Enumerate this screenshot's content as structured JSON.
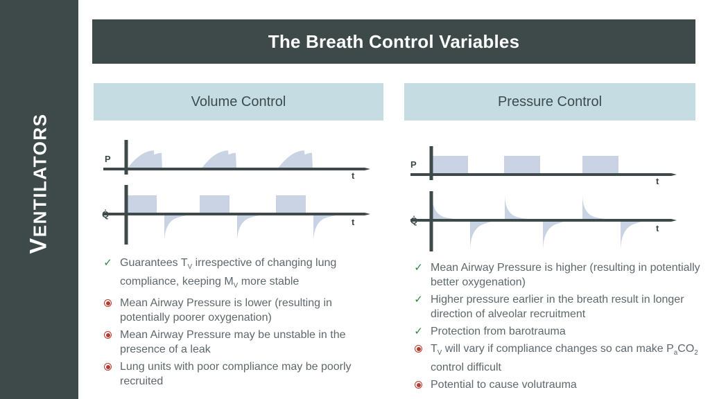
{
  "sidebar": {
    "vertical_title_initial": "V",
    "vertical_title_rest": "ENTILATORS"
  },
  "header": {
    "title": "The Breath Control Variables"
  },
  "icons": {
    "check": "✓"
  },
  "colors": {
    "dark_slate": "#3d4a49",
    "panel_blue": "#c5dde2",
    "waveform_fill": "#c9d3e3",
    "check_green": "#2e8540",
    "bullet_red": "#b5392c",
    "body_text": "#5e686c"
  },
  "columns": [
    {
      "header": "Volume Control",
      "graphs": [
        {
          "y_label": "P",
          "x_label": "t",
          "breaths": 3,
          "shape": "curved ramp rise to peak with end-inspiratory notch then fall to baseline"
        },
        {
          "y_label": "Q̇",
          "x_label": "t",
          "breaths": 3,
          "shape": "square inspiratory flow above baseline, exponential decay expiratory flow below baseline"
        }
      ],
      "items": [
        {
          "type": "pro",
          "segments": [
            {
              "t": "Guarantees T"
            },
            {
              "t": "V",
              "sub": true
            },
            {
              "t": " irrespective of changing lung compliance, keeping M"
            },
            {
              "t": "V",
              "sub": true
            },
            {
              "t": " more stable"
            }
          ]
        },
        {
          "type": "con",
          "segments": [
            {
              "t": "Mean Airway Pressure is lower (resulting in potentially poorer oxygenation)"
            }
          ]
        },
        {
          "type": "con",
          "segments": [
            {
              "t": "Mean Airway Pressure may be unstable in the presence of a leak"
            }
          ]
        },
        {
          "type": "con",
          "segments": [
            {
              "t": "Lung units with poor compliance may be poorly recruited"
            }
          ]
        }
      ]
    },
    {
      "header": "Pressure Control",
      "graphs": [
        {
          "y_label": "P",
          "x_label": "t",
          "breaths": 3,
          "shape": "square pressure waveform above baseline"
        },
        {
          "y_label": "Q̇",
          "x_label": "t",
          "breaths": 3,
          "shape": "decelerating inspiratory flow above baseline, exponential decay expiratory flow below baseline"
        }
      ],
      "items": [
        {
          "type": "pro",
          "segments": [
            {
              "t": "Mean Airway Pressure is higher (resulting in potentially better oxygenation)"
            }
          ]
        },
        {
          "type": "pro",
          "segments": [
            {
              "t": "Higher pressure earlier in the breath result in longer direction of alveolar recruitment"
            }
          ]
        },
        {
          "type": "pro",
          "segments": [
            {
              "t": "Protection from barotrauma"
            }
          ]
        },
        {
          "type": "con",
          "segments": [
            {
              "t": "T"
            },
            {
              "t": "V",
              "sub": true
            },
            {
              "t": " will vary if compliance changes so can make P"
            },
            {
              "t": "a",
              "sub": true
            },
            {
              "t": "CO"
            },
            {
              "t": "2",
              "sub": true
            },
            {
              "t": " control difficult"
            }
          ]
        },
        {
          "type": "con",
          "segments": [
            {
              "t": "Potential to cause volutrauma"
            }
          ]
        }
      ]
    }
  ]
}
